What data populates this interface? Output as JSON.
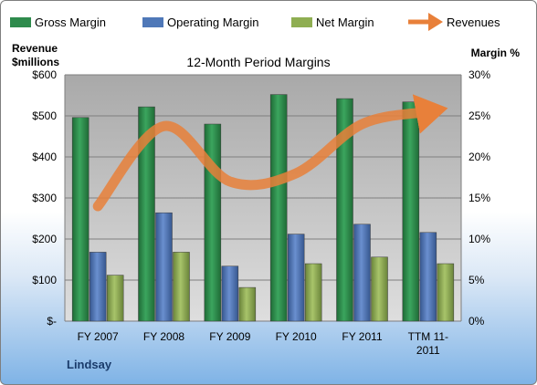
{
  "chart_data": {
    "type": "bar",
    "title": "12-Month Period Margins",
    "company_label": "Lindsay",
    "left_axis_title": [
      "Revenue",
      "$millions"
    ],
    "right_axis_title": "Margin %",
    "left_ticks": [
      "$-",
      "$100",
      "$200",
      "$300",
      "$400",
      "$500",
      "$600"
    ],
    "right_ticks": [
      "0%",
      "5%",
      "10%",
      "15%",
      "20%",
      "25%",
      "30%"
    ],
    "ylim_left": [
      0,
      600
    ],
    "ylim_right": [
      0,
      30
    ],
    "grid": true,
    "legend_position": "top",
    "categories": [
      "FY 2007",
      "FY 2008",
      "FY 2009",
      "FY 2010",
      "FY 2011",
      "TTM 11-2011"
    ],
    "category_lines": [
      [
        "FY 2007"
      ],
      [
        "FY 2008"
      ],
      [
        "FY 2009"
      ],
      [
        "FY 2010"
      ],
      [
        "FY 2011"
      ],
      [
        "TTM 11-",
        "2011"
      ]
    ],
    "series": [
      {
        "name": "Gross Margin",
        "axis": "right",
        "type": "bar",
        "color": "#2e8b4c",
        "values": [
          24.8,
          26.1,
          24.0,
          27.6,
          27.1,
          26.7
        ]
      },
      {
        "name": "Operating Margin",
        "axis": "right",
        "type": "bar",
        "color": "#4f78b8",
        "values": [
          8.4,
          13.2,
          6.7,
          10.6,
          11.8,
          10.8
        ]
      },
      {
        "name": "Net Margin",
        "axis": "right",
        "type": "bar",
        "color": "#8fae52",
        "values": [
          5.6,
          8.4,
          4.1,
          7.0,
          7.8,
          7.0
        ]
      },
      {
        "name": "Revenues",
        "axis": "left",
        "type": "line",
        "color": "#e8803a",
        "values": [
          280,
          475,
          340,
          360,
          480,
          510
        ]
      }
    ]
  }
}
